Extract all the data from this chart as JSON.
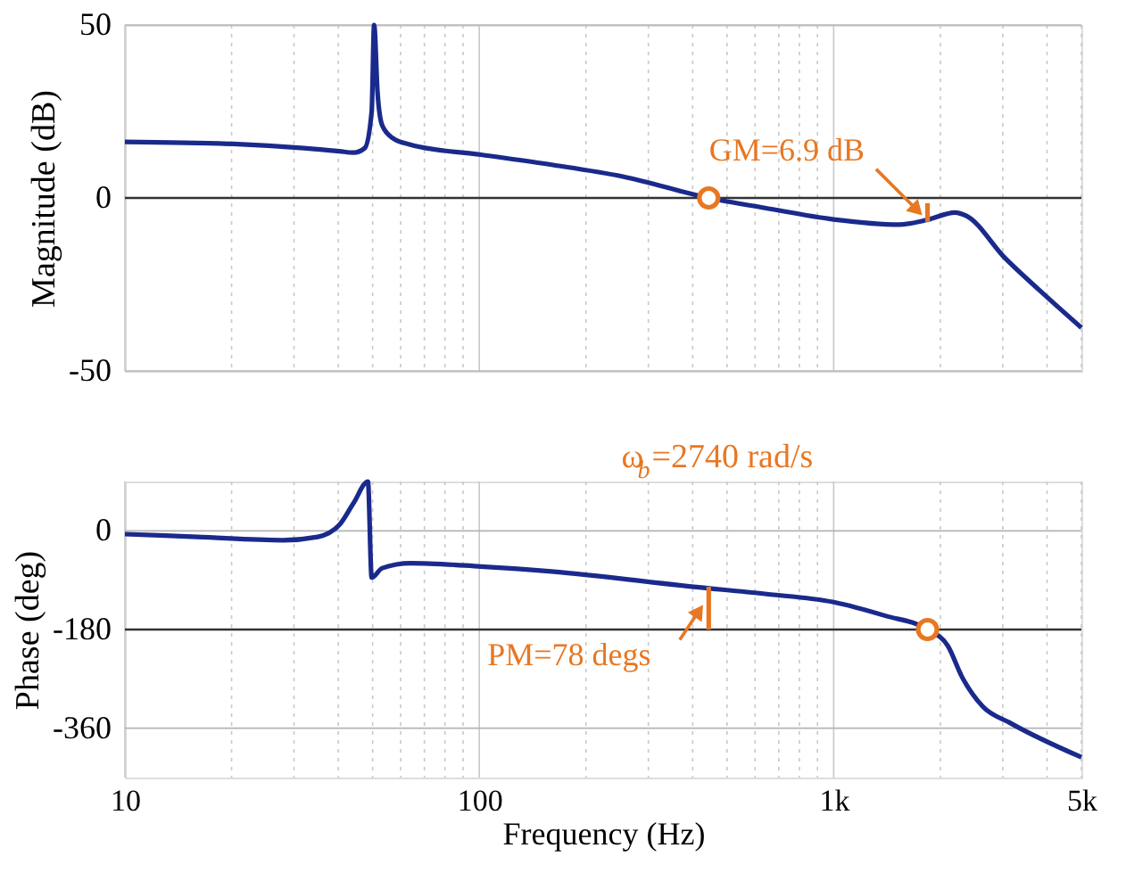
{
  "chart_data": [
    {
      "type": "line",
      "ylabel": "Magnitude (dB)",
      "log": "x",
      "tick_labels": "y",
      "grid": true,
      "line_style": "solid",
      "marker": "none",
      "xlim": [
        10,
        5000
      ],
      "ylim": [
        -50,
        50
      ],
      "xticks": [
        {
          "value": 10,
          "label": null
        },
        {
          "value": 20,
          "label": null
        },
        {
          "value": 30,
          "label": null
        },
        {
          "value": 40,
          "label": null
        },
        {
          "value": 50,
          "label": null
        },
        {
          "value": 60,
          "label": null
        },
        {
          "value": 70,
          "label": null
        },
        {
          "value": 80,
          "label": null
        },
        {
          "value": 90,
          "label": null
        },
        {
          "value": 100,
          "label": null
        },
        {
          "value": 200,
          "label": null
        },
        {
          "value": 300,
          "label": null
        },
        {
          "value": 400,
          "label": null
        },
        {
          "value": 500,
          "label": null
        },
        {
          "value": 600,
          "label": null
        },
        {
          "value": 700,
          "label": null
        },
        {
          "value": 800,
          "label": null
        },
        {
          "value": 900,
          "label": null
        },
        {
          "value": 1000,
          "label": null
        },
        {
          "value": 2000,
          "label": null
        },
        {
          "value": 3000,
          "label": null
        },
        {
          "value": 4000,
          "label": null
        },
        {
          "value": 5000,
          "label": null
        }
      ],
      "yticks": [
        -50,
        0,
        50
      ],
      "ref_lines": [
        {
          "axis": "y",
          "value": 0,
          "color": "#333333"
        }
      ],
      "series": [
        {
          "color": "#1a2a8c",
          "x": [
            10,
            20.2,
            32,
            40.3,
            44.2,
            47.5,
            49.7,
            50.5,
            51.6,
            53.2,
            57,
            63.9,
            101,
            160,
            254,
            444,
            640,
            1000,
            1530,
            1840,
            2200,
            2370,
            3040,
            3830,
            5000
          ],
          "values": [
            16.2,
            15.6,
            14.4,
            13.5,
            13.1,
            14.4,
            25,
            50,
            30.8,
            21,
            17.3,
            15.4,
            12.5,
            9.6,
            6.2,
            0,
            -2.9,
            -6.2,
            -7.7,
            -6.3,
            -4.2,
            -5.2,
            -17.3,
            -26.9,
            -37.5
          ]
        },
        {
          "type": "line",
          "color": "#e87722",
          "x": [
            1840,
            1840
          ],
          "values": [
            -1.5,
            -6.9
          ]
        },
        {
          "type": "scatter",
          "marker": "circle",
          "color": "#e87722",
          "x": [
            444
          ],
          "values": [
            0
          ]
        }
      ],
      "annotations": [
        {
          "text": "GM=6.9 dB",
          "x": 1700,
          "y": -3
        }
      ]
    },
    {
      "type": "line",
      "ylabel": "Phase (deg)",
      "xlabel": "Frequency  (Hz)",
      "log": "x",
      "grid": true,
      "line_style": "solid",
      "marker": "none",
      "xlim": [
        10,
        5000
      ],
      "ylim": [
        -450,
        90
      ],
      "xticks": [
        {
          "value": 10,
          "label": "10"
        },
        {
          "value": 20,
          "label": null
        },
        {
          "value": 30,
          "label": null
        },
        {
          "value": 40,
          "label": null
        },
        {
          "value": 50,
          "label": null
        },
        {
          "value": 60,
          "label": null
        },
        {
          "value": 70,
          "label": null
        },
        {
          "value": 80,
          "label": null
        },
        {
          "value": 90,
          "label": null
        },
        {
          "value": 100,
          "label": "100"
        },
        {
          "value": 200,
          "label": null
        },
        {
          "value": 300,
          "label": null
        },
        {
          "value": 400,
          "label": null
        },
        {
          "value": 500,
          "label": null
        },
        {
          "value": 600,
          "label": null
        },
        {
          "value": 700,
          "label": null
        },
        {
          "value": 800,
          "label": null
        },
        {
          "value": 900,
          "label": null
        },
        {
          "value": 1000,
          "label": "1k"
        },
        {
          "value": 2000,
          "label": null
        },
        {
          "value": 3000,
          "label": null
        },
        {
          "value": 4000,
          "label": null
        },
        {
          "value": 5000,
          "label": "5k"
        }
      ],
      "yticks": [
        -360,
        -180,
        0
      ],
      "ref_lines": [
        {
          "axis": "y",
          "value": -180,
          "color": "#333333"
        }
      ],
      "series": [
        {
          "color": "#1a2a8c",
          "x": [
            10,
            16,
            27.9,
            35,
            40.3,
            44.2,
            48.5,
            49.7,
            53.2,
            63.9,
            101,
            160,
            403,
            640,
            1000,
            1400,
            1840,
            2100,
            2300,
            2630,
            3160,
            5000
          ],
          "values": [
            -6,
            -11,
            -17,
            -11,
            11,
            51,
            90,
            -85,
            -68,
            -59,
            -65,
            -74,
            -102,
            -115,
            -130,
            -155,
            -180,
            -210,
            -266,
            -320,
            -351,
            -413
          ]
        },
        {
          "type": "line",
          "color": "#e87722",
          "x": [
            444,
            444
          ],
          "values": [
            -180,
            -102
          ]
        },
        {
          "type": "scatter",
          "marker": "circle",
          "color": "#e87722",
          "x": [
            1840
          ],
          "values": [
            -180
          ]
        }
      ],
      "annotations": [
        {
          "text": "PM=78 degs",
          "x": 413,
          "y": -150
        },
        "ω$_{b}$=2740 rad/s"
      ]
    }
  ]
}
